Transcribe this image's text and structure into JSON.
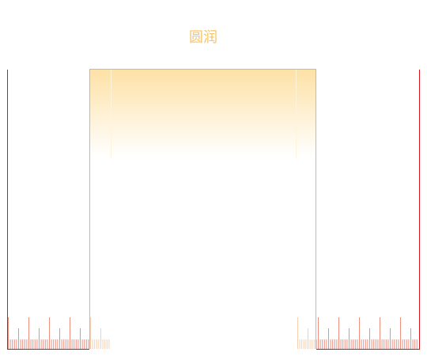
{
  "title": "圆润",
  "colors": {
    "title": "#f4c56a",
    "frame_outer": "#d8141a",
    "frame_inner": "#e9bf2a",
    "panel_gradient_top": "#fde1a6",
    "panel_gradient_bottom": "#ffffff",
    "ruler_ticks_red": "#ee8f80",
    "ruler_ticks_faded": "#f7c39a",
    "inner_highlight_line": "#fff3da"
  }
}
